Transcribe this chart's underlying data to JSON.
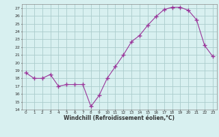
{
  "x": [
    0,
    1,
    2,
    3,
    4,
    5,
    6,
    7,
    8,
    9,
    10,
    11,
    12,
    13,
    14,
    15,
    16,
    17,
    18,
    19,
    20,
    21,
    22,
    23
  ],
  "y": [
    18.7,
    18.0,
    18.0,
    18.5,
    17.0,
    17.2,
    17.2,
    17.2,
    14.4,
    15.8,
    18.0,
    19.5,
    21.0,
    22.7,
    23.5,
    24.8,
    25.9,
    26.8,
    27.1,
    27.1,
    26.7,
    25.5,
    22.2,
    20.8
  ],
  "line_color": "#993399",
  "marker": "+",
  "bg_color": "#d8f0f0",
  "grid_color": "#aacccc",
  "xlabel": "Windchill (Refroidissement éolien,°C)",
  "ylim": [
    14,
    27.5
  ],
  "yticks": [
    14,
    15,
    16,
    17,
    18,
    19,
    20,
    21,
    22,
    23,
    24,
    25,
    26,
    27
  ],
  "xlim": [
    -0.5,
    23.5
  ],
  "tick_color": "#333333"
}
